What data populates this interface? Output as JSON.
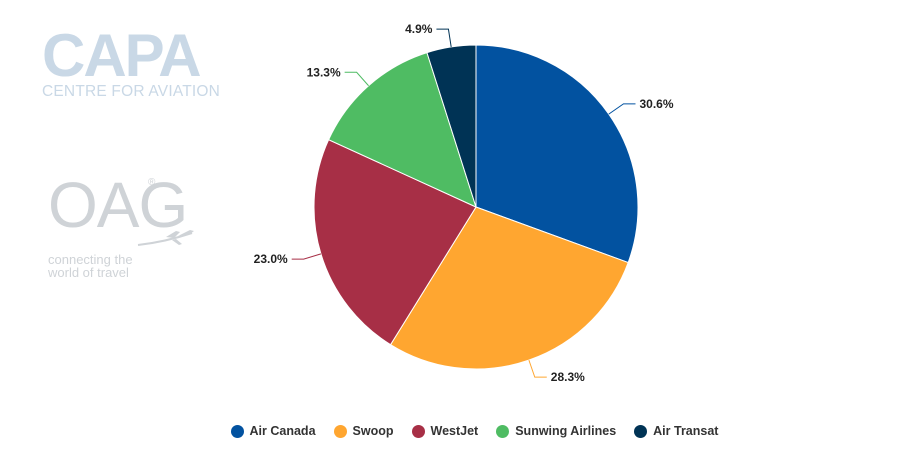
{
  "logos": {
    "capa": {
      "word": "CAPA",
      "tagline": "CENTRE FOR AVIATION"
    },
    "oag": {
      "word": "OAG",
      "registered": "®",
      "tagline": "connecting the world of travel"
    }
  },
  "chart_data": {
    "type": "pie",
    "categories": [
      "Air Canada",
      "Swoop",
      "WestJet",
      "Sunwing Airlines",
      "Air Transat"
    ],
    "values": [
      30.6,
      28.3,
      23.0,
      13.3,
      4.9
    ],
    "value_labels": [
      "30.6%",
      "28.3%",
      "23.0%",
      "13.3%",
      "4.9%"
    ],
    "colors": [
      "#0252a0",
      "#ffa630",
      "#a72f46",
      "#4fbc63",
      "#003355"
    ],
    "start_angle_deg": 0,
    "direction": "clockwise",
    "legend_position": "bottom",
    "title": ""
  }
}
